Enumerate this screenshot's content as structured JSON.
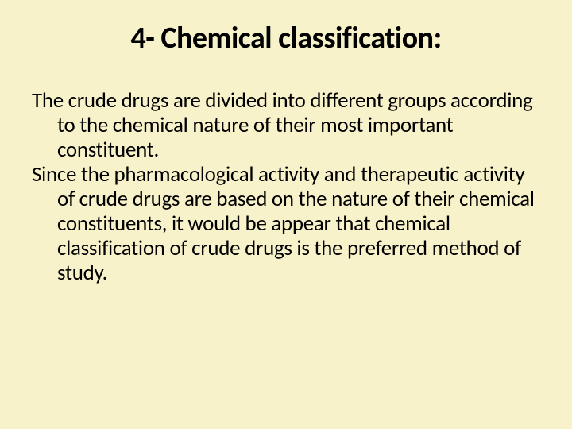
{
  "slide": {
    "background_color": "#f8f2ca",
    "text_color": "#000000",
    "title": {
      "text": "4- Chemical classification:",
      "font_size": 38,
      "font_weight": 700,
      "align": "center"
    },
    "body": {
      "font_size": 27,
      "paragraphs": [
        "The crude drugs are divided into different groups according to the chemical nature of their most important constituent.",
        "Since the pharmacological activity and therapeutic activity of crude drugs are based on the nature of their chemical constituents, it would be appear that chemical classification of crude drugs is the preferred method of study."
      ]
    }
  }
}
